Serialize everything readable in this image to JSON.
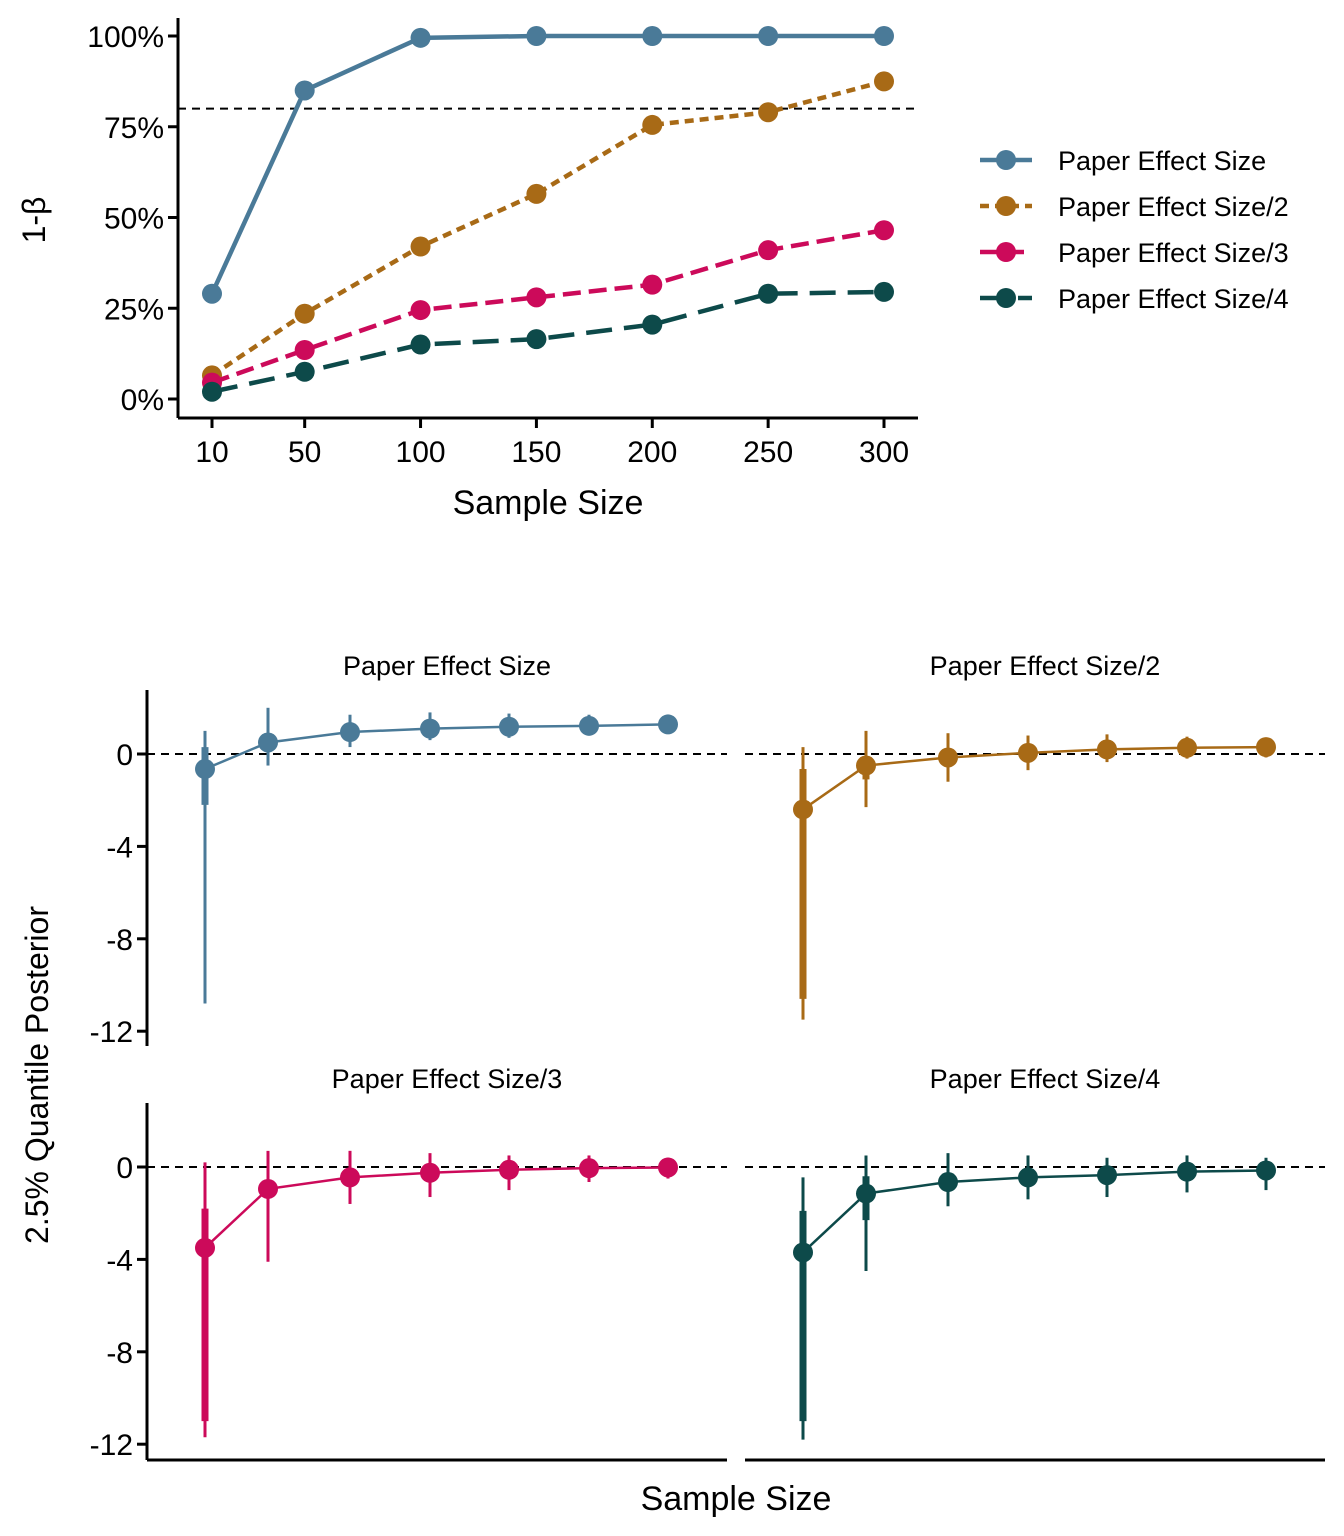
{
  "chart_data": [
    {
      "type": "line",
      "xlabel": "Sample Size",
      "ylabel": "1-β",
      "x": [
        10,
        50,
        100,
        150,
        200,
        250,
        300
      ],
      "x_ticks": [
        "10",
        "50",
        "100",
        "150",
        "200",
        "250",
        "300"
      ],
      "y_ticks": [
        "0%",
        "25%",
        "50%",
        "75%",
        "100%"
      ],
      "ylim": [
        0,
        1
      ],
      "reference_line": 0.8,
      "legend_position": "right",
      "series": [
        {
          "name": "Paper Effect Size",
          "color": "#4a7a98",
          "dash": "solid",
          "values": [
            0.29,
            0.85,
            0.995,
            1.0,
            1.0,
            1.0,
            1.0
          ]
        },
        {
          "name": "Paper Effect Size/2",
          "color": "#a86a16",
          "dash": "dotted",
          "values": [
            0.065,
            0.235,
            0.42,
            0.565,
            0.755,
            0.79,
            0.875
          ]
        },
        {
          "name": "Paper Effect Size/3",
          "color": "#cc0a5a",
          "dash": "dashed",
          "values": [
            0.045,
            0.135,
            0.245,
            0.28,
            0.315,
            0.41,
            0.465
          ]
        },
        {
          "name": "Paper Effect Size/4",
          "color": "#0d4a4a",
          "dash": "longdash",
          "values": [
            0.02,
            0.075,
            0.15,
            0.165,
            0.205,
            0.29,
            0.295
          ]
        }
      ]
    },
    {
      "type": "scatter",
      "xlabel": "Sample Size",
      "ylabel": "2.5% Quantile Posterior",
      "y_ticks": [
        "0",
        "-4",
        "-8",
        "-12"
      ],
      "ylim": [
        -12.5,
        2.8
      ],
      "reference_line": 0,
      "panels": [
        {
          "title": "Paper Effect Size",
          "color": "#4a7a98",
          "points": [
            {
              "median": -0.65,
              "q_lo": -2.2,
              "q_hi": 0.3,
              "lo": -10.8,
              "hi": 1.0
            },
            {
              "median": 0.5,
              "q_lo": 0.2,
              "q_hi": 0.9,
              "lo": -0.5,
              "hi": 2.0
            },
            {
              "median": 0.95,
              "q_lo": 0.7,
              "q_hi": 1.2,
              "lo": 0.3,
              "hi": 1.7
            },
            {
              "median": 1.1,
              "q_lo": 0.9,
              "q_hi": 1.35,
              "lo": 0.6,
              "hi": 1.8
            },
            {
              "median": 1.18,
              "q_lo": 1.0,
              "q_hi": 1.38,
              "lo": 0.7,
              "hi": 1.75
            },
            {
              "median": 1.22,
              "q_lo": 1.05,
              "q_hi": 1.4,
              "lo": 0.85,
              "hi": 1.7
            },
            {
              "median": 1.28,
              "q_lo": 1.1,
              "q_hi": 1.42,
              "lo": 0.95,
              "hi": 1.6
            }
          ]
        },
        {
          "title": "Paper Effect Size/2",
          "color": "#a86a16",
          "points": [
            {
              "median": -2.4,
              "q_lo": -10.6,
              "q_hi": -0.65,
              "lo": -11.5,
              "hi": 0.3
            },
            {
              "median": -0.5,
              "q_lo": -1.1,
              "q_hi": -0.1,
              "lo": -2.3,
              "hi": 1.0
            },
            {
              "median": -0.15,
              "q_lo": -0.45,
              "q_hi": 0.15,
              "lo": -1.2,
              "hi": 0.9
            },
            {
              "median": 0.05,
              "q_lo": -0.15,
              "q_hi": 0.25,
              "lo": -0.7,
              "hi": 0.8
            },
            {
              "median": 0.2,
              "q_lo": 0.0,
              "q_hi": 0.4,
              "lo": -0.35,
              "hi": 0.85
            },
            {
              "median": 0.27,
              "q_lo": 0.1,
              "q_hi": 0.45,
              "lo": -0.2,
              "hi": 0.75
            },
            {
              "median": 0.3,
              "q_lo": 0.15,
              "q_hi": 0.45,
              "lo": -0.15,
              "hi": 0.7
            }
          ]
        },
        {
          "title": "Paper Effect Size/3",
          "color": "#cc0a5a",
          "points": [
            {
              "median": -3.5,
              "q_lo": -11.0,
              "q_hi": -1.8,
              "lo": -11.7,
              "hi": 0.2
            },
            {
              "median": -0.95,
              "q_lo": -1.35,
              "q_hi": -0.55,
              "lo": -4.1,
              "hi": 0.7
            },
            {
              "median": -0.45,
              "q_lo": -0.8,
              "q_hi": -0.1,
              "lo": -1.6,
              "hi": 0.7
            },
            {
              "median": -0.25,
              "q_lo": -0.55,
              "q_hi": 0.05,
              "lo": -1.3,
              "hi": 0.6
            },
            {
              "median": -0.12,
              "q_lo": -0.4,
              "q_hi": 0.15,
              "lo": -1.0,
              "hi": 0.5
            },
            {
              "median": -0.05,
              "q_lo": -0.3,
              "q_hi": 0.2,
              "lo": -0.65,
              "hi": 0.5
            },
            {
              "median": -0.02,
              "q_lo": -0.25,
              "q_hi": 0.2,
              "lo": -0.5,
              "hi": 0.4
            }
          ]
        },
        {
          "title": "Paper Effect Size/4",
          "color": "#0d4a4a",
          "points": [
            {
              "median": -3.7,
              "q_lo": -11.0,
              "q_hi": -1.9,
              "lo": -11.8,
              "hi": -0.45
            },
            {
              "median": -1.15,
              "q_lo": -2.3,
              "q_hi": -0.4,
              "lo": -4.5,
              "hi": 0.5
            },
            {
              "median": -0.65,
              "q_lo": -1.0,
              "q_hi": -0.3,
              "lo": -1.7,
              "hi": 0.6
            },
            {
              "median": -0.45,
              "q_lo": -0.8,
              "q_hi": -0.15,
              "lo": -1.4,
              "hi": 0.5
            },
            {
              "median": -0.35,
              "q_lo": -0.65,
              "q_hi": -0.05,
              "lo": -1.3,
              "hi": 0.4
            },
            {
              "median": -0.2,
              "q_lo": -0.45,
              "q_hi": 0.05,
              "lo": -1.1,
              "hi": 0.5
            },
            {
              "median": -0.15,
              "q_lo": -0.4,
              "q_hi": 0.1,
              "lo": -1.0,
              "hi": 0.4
            }
          ]
        }
      ]
    }
  ]
}
